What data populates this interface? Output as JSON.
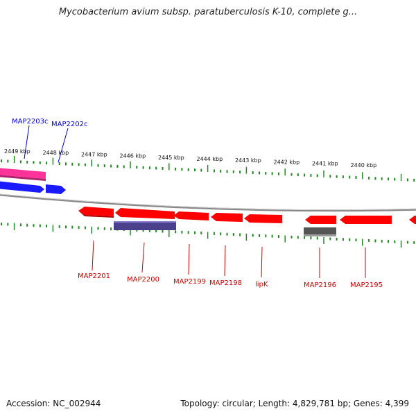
{
  "title": "Mycobacterium avium subsp. paratuberculosis K-10, complete g...",
  "footer": {
    "accession": "Accession: NC_002944",
    "summary": "Topology: circular; Length: 4,829,781 bp; Genes: 4,399"
  },
  "colors": {
    "forward_pink": "#ff3399",
    "forward_blue": "#1a1aff",
    "reverse_red": "#ff0000",
    "purple_feature": "#4a3f8a",
    "grey_feature": "#555555",
    "backbone": "#888888",
    "tick_green": "#228822",
    "label_blue": "#0000cc",
    "label_red": "#cc0000"
  },
  "ruler_labels": [
    "2449 kbp",
    "2448 kbp",
    "2447 kbp",
    "2446 kbp",
    "2445 kbp",
    "2444 kbp",
    "2443 kbp",
    "2442 kbp",
    "2441 kbp",
    "2440 kbp"
  ],
  "gene_labels_top": [
    "MAP2203c",
    "MAP2202c"
  ],
  "gene_labels_bottom": [
    "MAP2201",
    "MAP2200",
    "MAP2199",
    "MAP2198",
    "lipK",
    "MAP2196",
    "MAP2195"
  ]
}
